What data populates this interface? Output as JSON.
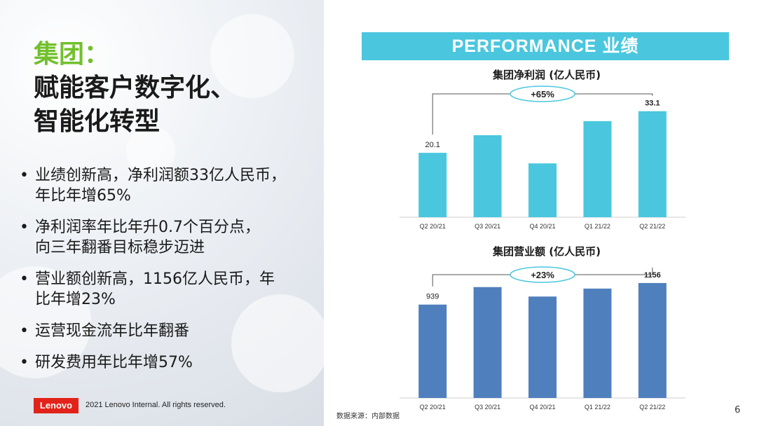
{
  "slide": {
    "title_green": "集团：",
    "title_lines": [
      "赋能客户数字化、",
      "智能化转型"
    ],
    "bullets": [
      "业绩创新高，净利润额33亿人民币，\n年比年增65%",
      "净利润率年比年升0.7个百分点，\n向三年翻番目标稳步迈进",
      "营业额创新高，1156亿人民币，年\n比年增23%",
      "运营现金流年比年翻番",
      "研发费用年比年增57%"
    ],
    "logo": "Lenovo",
    "copyright": "2021 Lenovo Internal. All rights reserved.",
    "banner": "PERFORMANCE 业绩",
    "source": "数据来源：内部数据",
    "page_number": "6"
  },
  "colors": {
    "net_profit_bar": "#4ac7de",
    "revenue_bar": "#4f7fbd",
    "brand_green": "#72c02c",
    "lenovo_red": "#e2231a"
  },
  "chart_data": [
    {
      "type": "bar",
      "title": "集团净利润 (亿人民币)",
      "categories": [
        "Q2 20/21",
        "Q3 20/21",
        "Q4 20/21",
        "Q1 21/22",
        "Q2 21/22"
      ],
      "values": [
        20.1,
        25.6,
        16.8,
        30.0,
        33.1
      ],
      "labels": [
        "20.1",
        "",
        "",
        "",
        "33.1"
      ],
      "growth_annotation": "+65%",
      "ylim": [
        0,
        35
      ]
    },
    {
      "type": "bar",
      "title": "集团营业额 (亿人民币)",
      "categories": [
        "Q2 20/21",
        "Q3 20/21",
        "Q4 20/21",
        "Q1 21/22",
        "Q2 21/22"
      ],
      "values": [
        939,
        1115,
        1020,
        1100,
        1156
      ],
      "labels": [
        "939",
        "",
        "",
        "",
        "1156"
      ],
      "growth_annotation": "+23%",
      "ylim": [
        0,
        1240
      ]
    }
  ]
}
